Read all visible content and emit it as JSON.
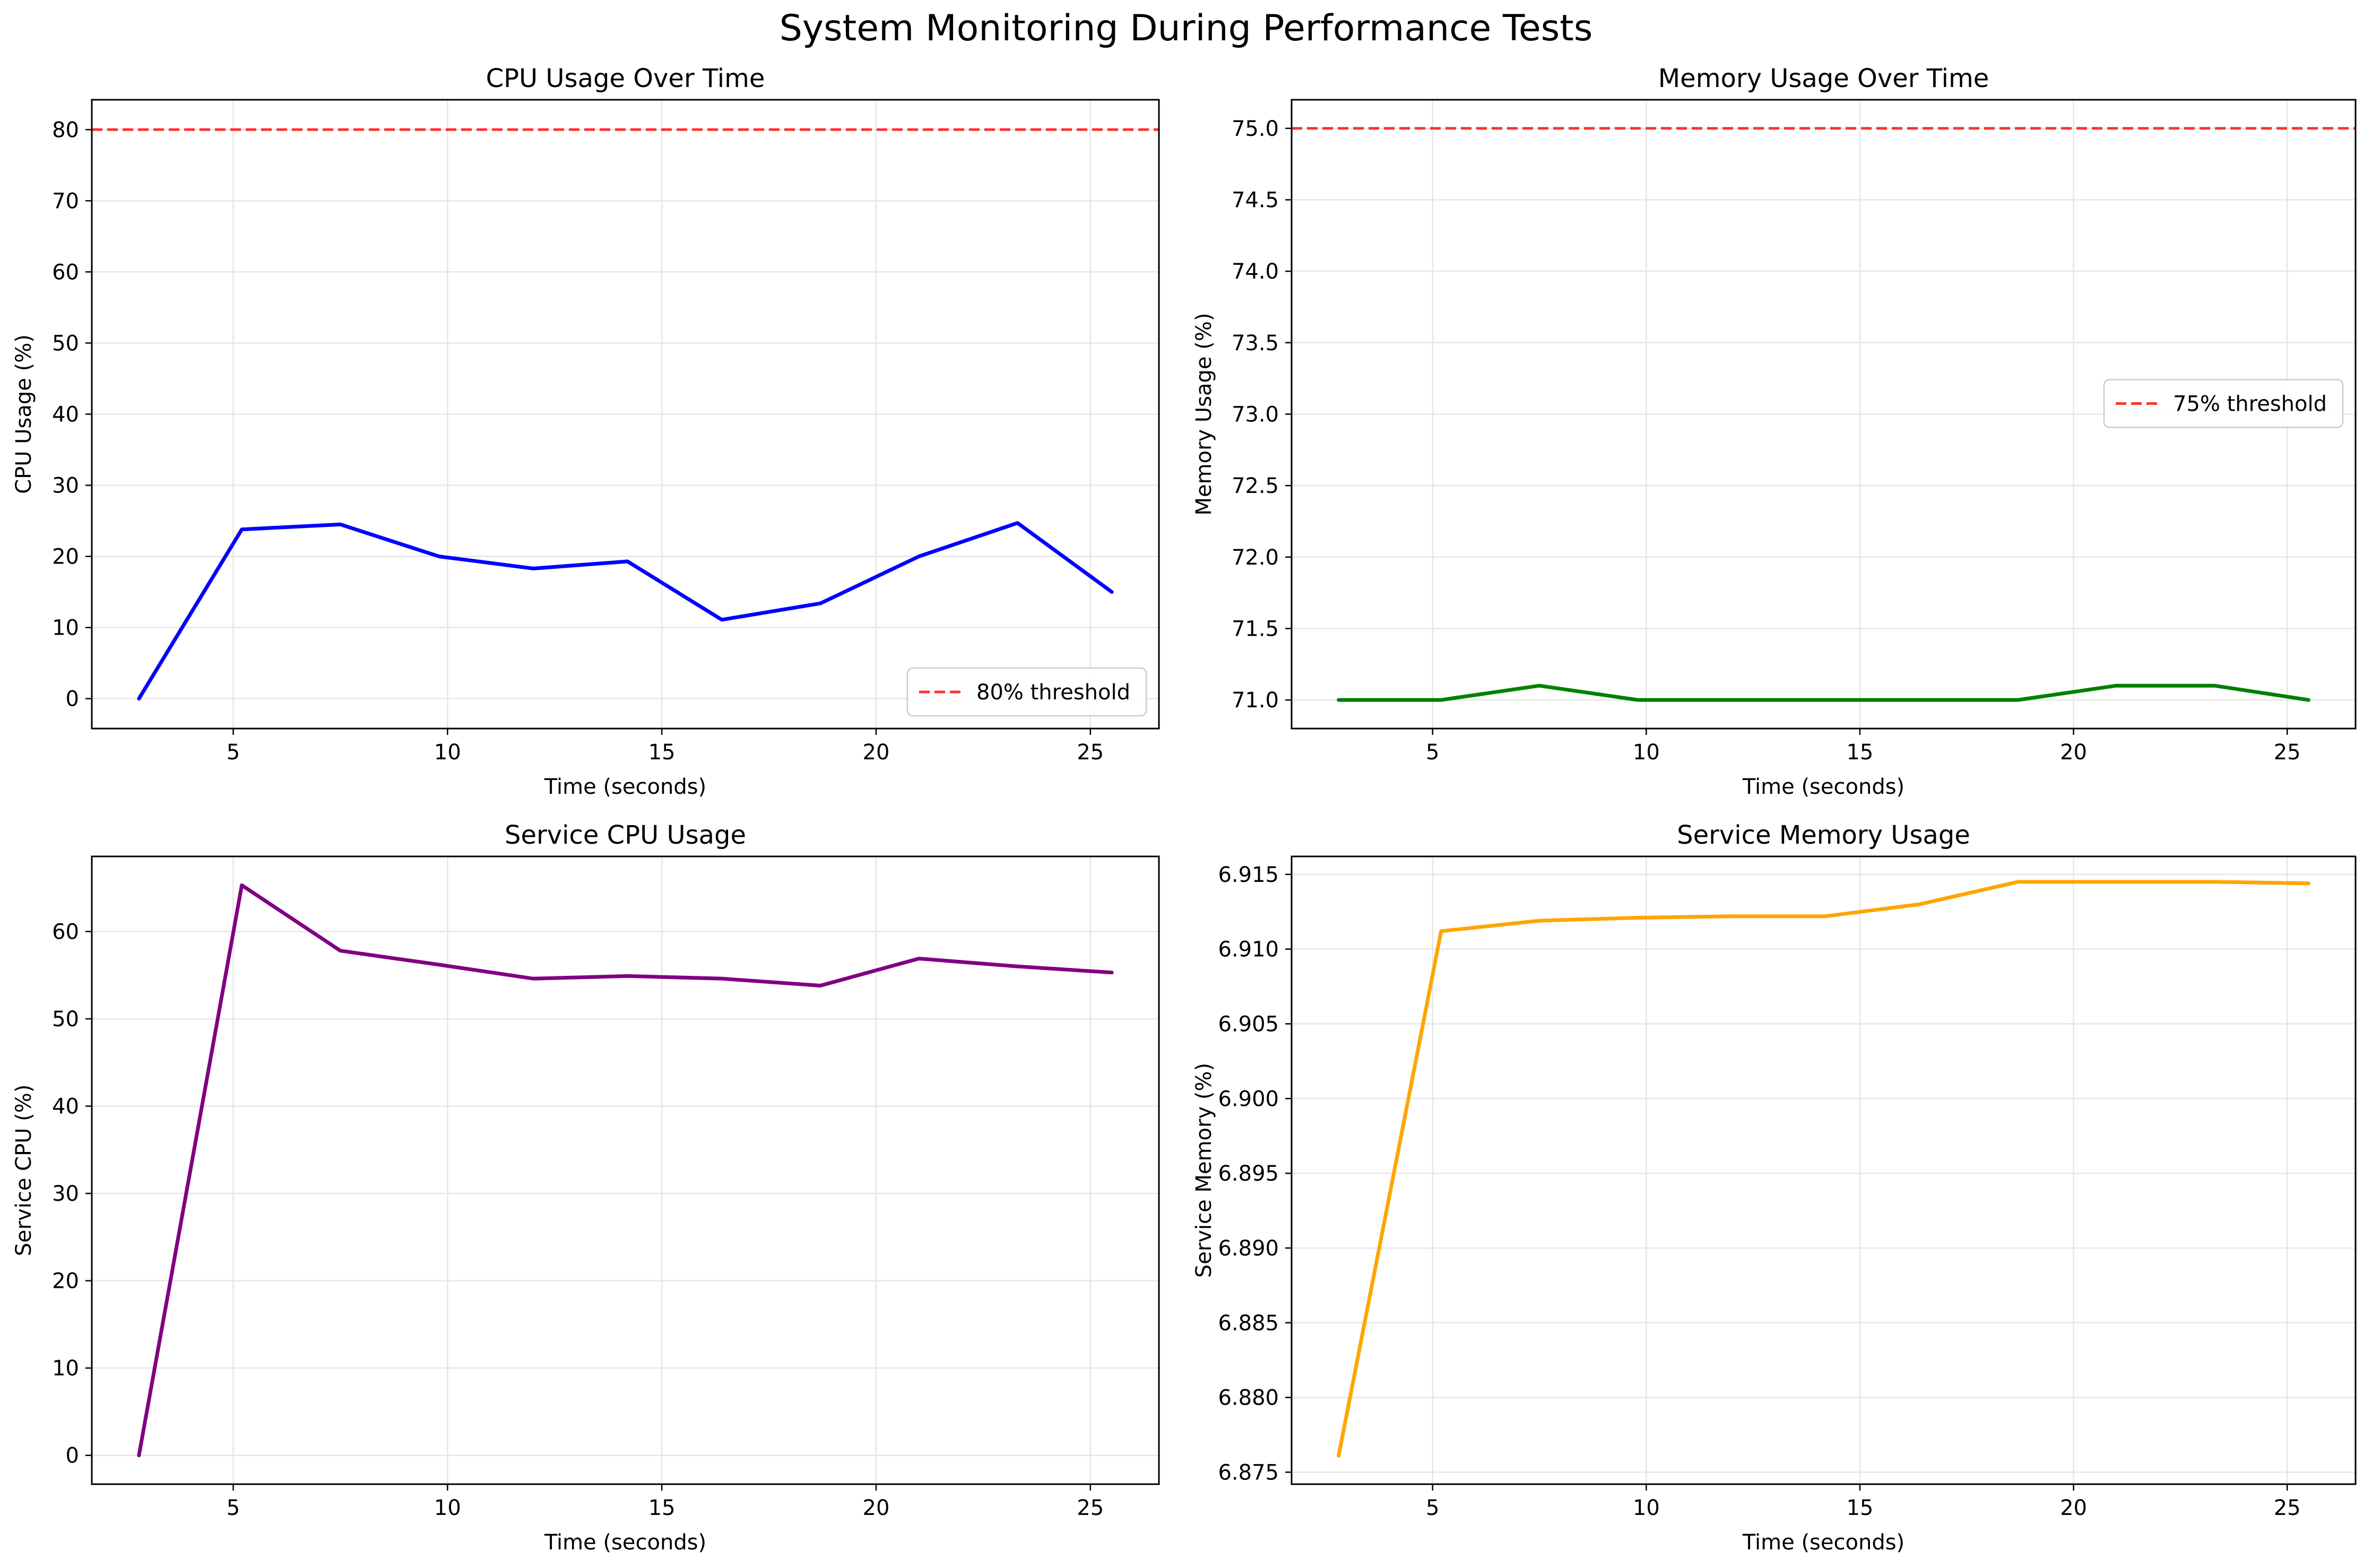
{
  "suptitle": "System Monitoring During Performance Tests",
  "chart_data": [
    {
      "type": "line",
      "title": "CPU Usage Over Time",
      "xlabel": "Time (seconds)",
      "ylabel": "CPU Usage (%)",
      "xlim": [
        1.7,
        26.6
      ],
      "ylim": [
        -4.2,
        84.2
      ],
      "xticks": [
        5,
        10,
        15,
        20,
        25
      ],
      "yticks": [
        0,
        10,
        20,
        30,
        40,
        50,
        60,
        70,
        80
      ],
      "ytick_labels": [
        "0",
        "10",
        "20",
        "30",
        "40",
        "50",
        "60",
        "70",
        "80"
      ],
      "grid": true,
      "legend_position": "lower-right",
      "line_color": "#0000ff",
      "series": [
        {
          "x": [
            2.8,
            5.2,
            7.5,
            9.8,
            12.0,
            14.2,
            16.4,
            18.7,
            21.0,
            23.3,
            25.5
          ],
          "y": [
            0.0,
            23.8,
            24.5,
            20.0,
            18.3,
            19.3,
            11.1,
            13.4,
            20.0,
            24.7,
            15.0
          ]
        }
      ],
      "threshold": {
        "value": 80,
        "label": "80% threshold",
        "color": "#ff3333"
      }
    },
    {
      "type": "line",
      "title": "Memory Usage Over Time",
      "xlabel": "Time (seconds)",
      "ylabel": "Memory Usage (%)",
      "xlim": [
        1.7,
        26.6
      ],
      "ylim": [
        70.8,
        75.2
      ],
      "xticks": [
        5,
        10,
        15,
        20,
        25
      ],
      "yticks": [
        71.0,
        71.5,
        72.0,
        72.5,
        73.0,
        73.5,
        74.0,
        74.5,
        75.0
      ],
      "ytick_labels": [
        "71.0",
        "71.5",
        "72.0",
        "72.5",
        "73.0",
        "73.5",
        "74.0",
        "74.5",
        "75.0"
      ],
      "grid": true,
      "legend_position": "center-right",
      "line_color": "#008000",
      "series": [
        {
          "x": [
            2.8,
            5.2,
            7.5,
            9.8,
            12.0,
            14.2,
            16.4,
            18.7,
            21.0,
            23.3,
            25.5
          ],
          "y": [
            71.0,
            71.0,
            71.1,
            71.0,
            71.0,
            71.0,
            71.0,
            71.0,
            71.1,
            71.1,
            71.0
          ]
        }
      ],
      "threshold": {
        "value": 75,
        "label": "75% threshold",
        "color": "#ff3333"
      }
    },
    {
      "type": "line",
      "title": "Service CPU Usage",
      "xlabel": "Time (seconds)",
      "ylabel": "Service CPU (%)",
      "xlim": [
        1.7,
        26.6
      ],
      "ylim": [
        -3.3,
        68.6
      ],
      "xticks": [
        5,
        10,
        15,
        20,
        25
      ],
      "yticks": [
        0,
        10,
        20,
        30,
        40,
        50,
        60
      ],
      "ytick_labels": [
        "0",
        "10",
        "20",
        "30",
        "40",
        "50",
        "60"
      ],
      "grid": true,
      "line_color": "#800080",
      "series": [
        {
          "x": [
            2.8,
            5.2,
            7.5,
            9.8,
            12.0,
            14.2,
            16.4,
            18.7,
            21.0,
            23.3,
            25.5
          ],
          "y": [
            0.0,
            65.3,
            57.8,
            56.2,
            54.6,
            54.9,
            54.6,
            53.8,
            56.9,
            56.0,
            55.3
          ]
        }
      ]
    },
    {
      "type": "line",
      "title": "Service Memory Usage",
      "xlabel": "Time (seconds)",
      "ylabel": "Service Memory (%)",
      "xlim": [
        1.7,
        26.6
      ],
      "ylim": [
        6.8742,
        6.9162
      ],
      "xticks": [
        5,
        10,
        15,
        20,
        25
      ],
      "yticks": [
        6.875,
        6.88,
        6.885,
        6.89,
        6.895,
        6.9,
        6.905,
        6.91,
        6.915
      ],
      "ytick_labels": [
        "6.875",
        "6.880",
        "6.885",
        "6.890",
        "6.895",
        "6.900",
        "6.905",
        "6.910",
        "6.915"
      ],
      "grid": true,
      "line_color": "#ffa500",
      "series": [
        {
          "x": [
            2.8,
            5.2,
            7.5,
            9.8,
            12.0,
            14.2,
            16.4,
            18.7,
            21.0,
            23.3,
            25.5
          ],
          "y": [
            6.8761,
            6.9112,
            6.9119,
            6.9121,
            6.9122,
            6.9122,
            6.913,
            6.9145,
            6.9145,
            6.9145,
            6.9144
          ]
        }
      ]
    }
  ]
}
